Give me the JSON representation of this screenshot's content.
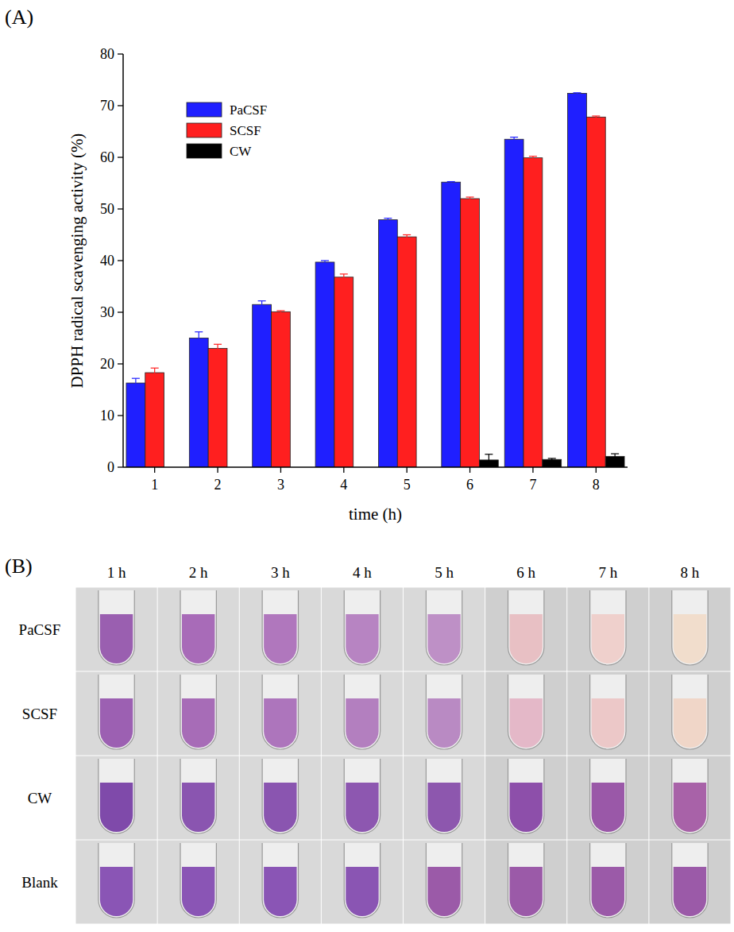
{
  "chart_data": {
    "type": "bar",
    "panel_label": "(A)",
    "x_label": "time (h)",
    "y_label": "DPPH radical scavenging activity (%)",
    "categories": [
      1,
      2,
      3,
      4,
      5,
      6,
      7,
      8
    ],
    "series": [
      {
        "name": "PaCSF",
        "color": "#1f1fff",
        "values": [
          16.3,
          25.0,
          31.5,
          39.7,
          47.9,
          55.2,
          63.5,
          72.4
        ],
        "errors": [
          0.9,
          1.2,
          0.7,
          0.3,
          0.3,
          0.1,
          0.4,
          0.1
        ]
      },
      {
        "name": "SCSF",
        "color": "#ff1f1f",
        "values": [
          18.3,
          23.0,
          30.1,
          36.8,
          44.6,
          52.0,
          59.9,
          67.8
        ],
        "errors": [
          0.9,
          0.8,
          0.2,
          0.6,
          0.4,
          0.3,
          0.3,
          0.2
        ]
      },
      {
        "name": "CW",
        "color": "#000000",
        "values": [
          null,
          null,
          null,
          null,
          null,
          1.4,
          1.5,
          2.1
        ],
        "errors": [
          null,
          null,
          null,
          null,
          null,
          1.1,
          0.2,
          0.5
        ]
      }
    ],
    "ylim": [
      0,
      80
    ],
    "yticks": [
      0,
      10,
      20,
      30,
      40,
      50,
      60,
      70,
      80
    ],
    "legend": "upper left",
    "grid": false
  },
  "panel_b": {
    "label": "(B)",
    "columns": [
      "1 h",
      "2 h",
      "3 h",
      "4 h",
      "5 h",
      "6 h",
      "7 h",
      "8 h"
    ],
    "rows": [
      {
        "name": "PaCSF",
        "colors": [
          "#9a5fb0",
          "#a86bb8",
          "#b077bd",
          "#b784c2",
          "#be90c6",
          "#e8c0c4",
          "#efd0cc",
          "#f1ddcc"
        ]
      },
      {
        "name": "SCSF",
        "colors": [
          "#9c60b2",
          "#a76cb7",
          "#ad75bc",
          "#b37fbf",
          "#b98ac3",
          "#e4b8c8",
          "#ecc8c8",
          "#f0d6c8"
        ]
      },
      {
        "name": "CW",
        "colors": [
          "#7f4aaa",
          "#8a55b0",
          "#8a55b0",
          "#8d57b0",
          "#8d57ae",
          "#8d4faa",
          "#9a58a8",
          "#a862a8"
        ]
      },
      {
        "name": "Blank",
        "colors": [
          "#8a55b5",
          "#8a55b5",
          "#8a55b5",
          "#8a55b3",
          "#9b5aa8",
          "#9b5aa8",
          "#9b5aa8",
          "#9b5aa8"
        ]
      }
    ]
  }
}
